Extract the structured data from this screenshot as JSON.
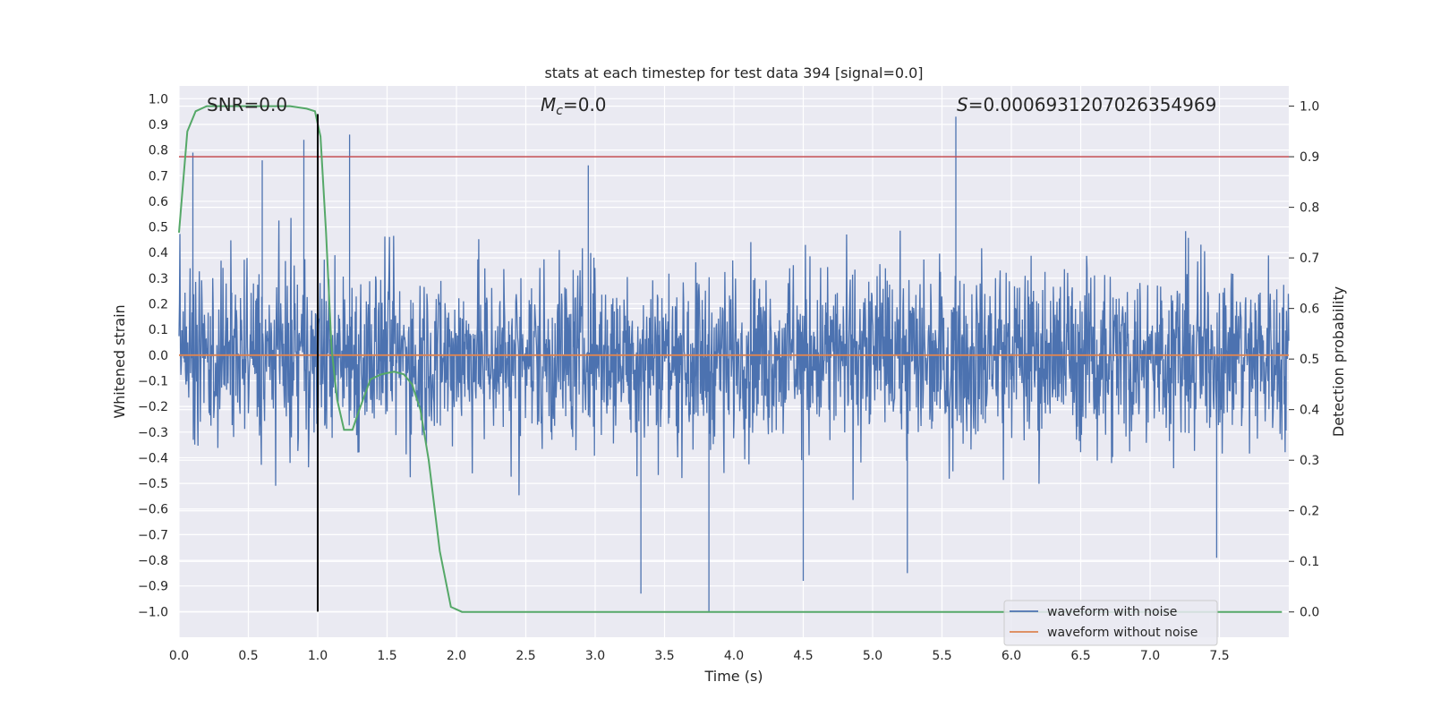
{
  "chart_data": {
    "type": "line",
    "title": "stats at each timestep for test data 394 [signal=0.0]",
    "xlabel": "Time (s)",
    "ylabel": "Whitened strain",
    "y2label": "Detection probability",
    "xlim": [
      0,
      8.0
    ],
    "ylim": [
      -1.1,
      1.05
    ],
    "y2lim": [
      -0.05,
      1.04
    ],
    "x_ticks": [
      0.0,
      0.5,
      1.0,
      1.5,
      2.0,
      2.5,
      3.0,
      3.5,
      4.0,
      4.5,
      5.0,
      5.5,
      6.0,
      6.5,
      7.0,
      7.5
    ],
    "y_ticks": [
      -1.0,
      -0.9,
      -0.8,
      -0.7,
      -0.6,
      -0.5,
      -0.4,
      -0.3,
      -0.2,
      -0.1,
      0.0,
      0.1,
      0.2,
      0.3,
      0.4,
      0.5,
      0.6,
      0.7,
      0.8,
      0.9,
      1.0
    ],
    "y2_ticks": [
      0.0,
      0.1,
      0.2,
      0.3,
      0.4,
      0.5,
      0.6,
      0.7,
      0.8,
      0.9,
      1.0
    ],
    "grid": true,
    "legend_position": "bottom-right",
    "annotations": {
      "snr": "SNR=0.0",
      "mc_symbol": "M",
      "mc_sub": "c",
      "mc_value": "=0.0",
      "s_symbol": "S",
      "s_value": "=0.0006931207026354969"
    },
    "series": [
      {
        "name": "waveform with noise",
        "axis": "left",
        "color": "#4c72b0",
        "kind": "noise",
        "approx_range": [
          -0.62,
          0.62
        ],
        "notable_spikes": [
          {
            "x": 0.1,
            "y": 0.79
          },
          {
            "x": 0.6,
            "y": 0.76
          },
          {
            "x": 0.9,
            "y": 0.84
          },
          {
            "x": 1.23,
            "y": 0.86
          },
          {
            "x": 2.95,
            "y": 0.74
          },
          {
            "x": 5.6,
            "y": 0.93
          },
          {
            "x": 3.33,
            "y": -0.93
          },
          {
            "x": 3.82,
            "y": -1.0
          },
          {
            "x": 4.5,
            "y": -0.88
          },
          {
            "x": 5.25,
            "y": -0.85
          },
          {
            "x": 7.48,
            "y": -0.79
          }
        ]
      },
      {
        "name": "waveform without noise",
        "axis": "left",
        "color": "#dd8452",
        "x": [
          0.0,
          8.0
        ],
        "y": [
          0.0,
          0.0
        ]
      },
      {
        "axis": "right",
        "color": "#55a868",
        "x": [
          0.0,
          0.06,
          0.12,
          0.2,
          0.4,
          0.6,
          0.8,
          0.92,
          0.98,
          1.02,
          1.06,
          1.1,
          1.14,
          1.19,
          1.25,
          1.3,
          1.38,
          1.46,
          1.55,
          1.62,
          1.68,
          1.74,
          1.8,
          1.88,
          1.96,
          2.04,
          2.1,
          2.2,
          3.0,
          4.0,
          5.0,
          6.0,
          7.0,
          7.95
        ],
        "y": [
          0.75,
          0.95,
          0.99,
          1.0,
          1.0,
          1.0,
          1.0,
          0.995,
          0.99,
          0.94,
          0.75,
          0.52,
          0.42,
          0.36,
          0.36,
          0.4,
          0.46,
          0.47,
          0.475,
          0.47,
          0.45,
          0.4,
          0.3,
          0.12,
          0.01,
          0.0,
          0.0,
          0.0,
          0.0,
          0.0,
          0.0,
          0.0,
          0.0,
          0.0
        ]
      },
      {
        "axis": "right",
        "color": "#c44e52",
        "kind": "threshold",
        "y": 0.9
      },
      {
        "axis": "left",
        "color": "#000000",
        "kind": "vertical",
        "x": 1.0,
        "y_range": [
          -1.0,
          0.94
        ]
      }
    ]
  }
}
